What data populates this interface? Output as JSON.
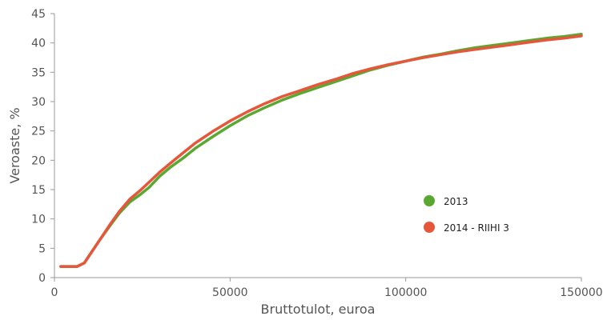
{
  "chart_data": {
    "type": "line",
    "xlabel": "Bruttotulot, euroa",
    "ylabel": "Veroaste, %",
    "xlim": [
      0,
      150000
    ],
    "ylim": [
      0,
      45
    ],
    "xticks": [
      0,
      50000,
      100000,
      150000
    ],
    "yticks": [
      0,
      5,
      10,
      15,
      20,
      25,
      30,
      35,
      40,
      45
    ],
    "grid": false,
    "legend_position": "right",
    "series": [
      {
        "name": "2013",
        "color": "#5aa832",
        "x": [
          1800,
          4000,
          6500,
          8500,
          10500,
          13000,
          16000,
          18500,
          21500,
          24500,
          27000,
          30000,
          33000,
          36500,
          40000,
          45000,
          50000,
          55000,
          60000,
          65000,
          70000,
          75000,
          80000,
          85000,
          90000,
          95000,
          100000,
          105000,
          110000,
          115000,
          120000,
          125000,
          130000,
          135000,
          140000,
          145000,
          150000
        ],
        "y": [
          1.9,
          1.9,
          1.9,
          2.5,
          4.3,
          6.5,
          9.0,
          11.0,
          12.9,
          14.2,
          15.4,
          17.3,
          18.8,
          20.3,
          22.0,
          24.0,
          25.9,
          27.6,
          29.0,
          30.3,
          31.4,
          32.4,
          33.4,
          34.4,
          35.4,
          36.2,
          36.9,
          37.6,
          38.1,
          38.7,
          39.2,
          39.6,
          40.0,
          40.4,
          40.8,
          41.1,
          41.5
        ]
      },
      {
        "name": "2014 - RIIHI 3",
        "color": "#e5563a",
        "x": [
          1800,
          4000,
          6500,
          8500,
          10500,
          13000,
          16000,
          18500,
          21500,
          24500,
          27000,
          30000,
          33000,
          36500,
          40000,
          45000,
          50000,
          55000,
          60000,
          65000,
          70000,
          75000,
          80000,
          85000,
          90000,
          95000,
          100000,
          105000,
          110000,
          115000,
          120000,
          125000,
          130000,
          135000,
          140000,
          145000,
          150000
        ],
        "y": [
          1.9,
          1.9,
          1.9,
          2.5,
          4.3,
          6.5,
          9.2,
          11.3,
          13.4,
          14.9,
          16.3,
          18.0,
          19.5,
          21.2,
          22.9,
          24.9,
          26.7,
          28.3,
          29.7,
          30.9,
          31.9,
          32.9,
          33.8,
          34.8,
          35.6,
          36.3,
          36.9,
          37.5,
          38.0,
          38.5,
          38.9,
          39.3,
          39.7,
          40.1,
          40.5,
          40.8,
          41.2
        ]
      }
    ]
  }
}
